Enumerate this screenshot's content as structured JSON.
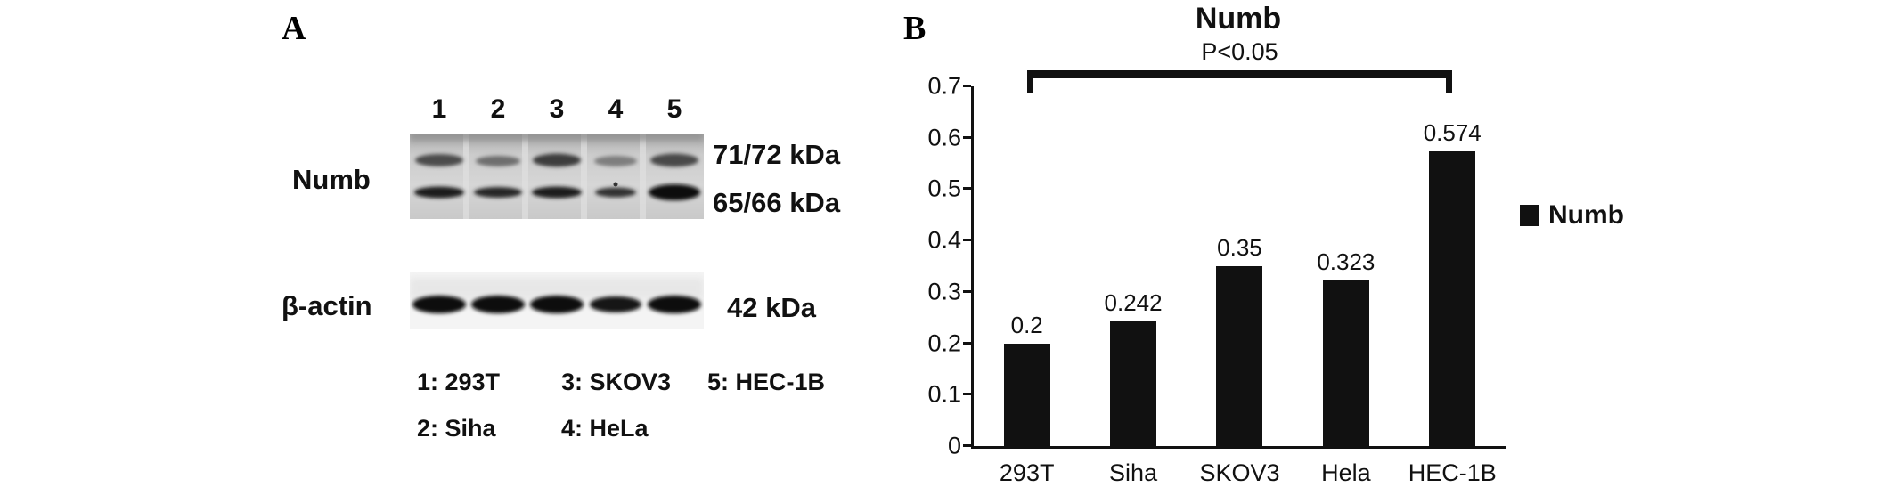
{
  "figure": {
    "panel_a": {
      "label": "A",
      "lane_numbers": [
        "1",
        "2",
        "3",
        "4",
        "5"
      ],
      "numb_label": "Numb",
      "actin_label": "β-actin",
      "kda_labels": [
        "71/72 kDa",
        "65/66 kDa",
        "42 kDa"
      ],
      "legend_rows": [
        [
          "1: 293T",
          "3: SKOV3",
          "5: HEC-1B"
        ],
        [
          "2: Siha",
          "4: HeLa"
        ]
      ]
    },
    "panel_b": {
      "label": "B",
      "legend": {
        "label": "Numb",
        "color": "#111111"
      }
    }
  },
  "chart_data": {
    "type": "bar",
    "title": "Numb",
    "categories": [
      "293T",
      "Siha",
      "SKOV3",
      "Hela",
      "HEC-1B"
    ],
    "values": [
      0.2,
      0.242,
      0.35,
      0.323,
      0.574
    ],
    "value_labels": [
      "0.2",
      "0.242",
      "0.35",
      "0.323",
      "0.574"
    ],
    "xlabel": "",
    "ylabel": "",
    "ylim": [
      0,
      0.7
    ],
    "yticks": [
      0,
      0.1,
      0.2,
      0.3,
      0.4,
      0.5,
      0.6,
      0.7
    ],
    "ytick_labels": [
      "0",
      "0.1",
      "0.2",
      "0.3",
      "0.4",
      "0.5",
      "0.6",
      "0.7"
    ],
    "bar_color": "#111111",
    "grid": false,
    "legend": [
      "Numb"
    ],
    "legend_position": "right",
    "annotation": {
      "text": "P<0.05",
      "from": "293T",
      "to": "HEC-1B"
    }
  }
}
